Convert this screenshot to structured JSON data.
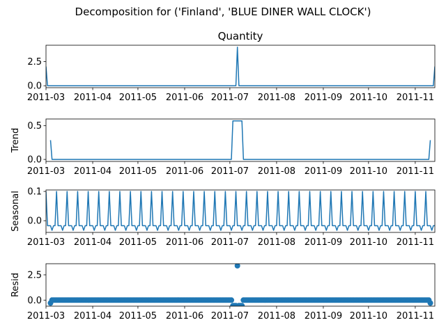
{
  "figure": {
    "suptitle": "Decomposition for ('Finland', 'BLUE DINER WALL CLOCK')"
  },
  "chart_data": [
    {
      "type": "line",
      "panel": "observed",
      "title": "Quantity",
      "ylabel": "",
      "x_range": [
        "2011-03-01",
        "2011-11-14"
      ],
      "ylim": [
        -0.2,
        4.2
      ],
      "yticks": [
        0.0,
        2.5
      ],
      "ytick_labels": [
        "0.0",
        "2.5"
      ],
      "xticks": [
        "2011-03-01",
        "2011-04-01",
        "2011-05-01",
        "2011-06-01",
        "2011-07-01",
        "2011-08-01",
        "2011-09-01",
        "2011-10-01",
        "2011-11-01"
      ],
      "xtick_labels": [
        "2011-03",
        "2011-04",
        "2011-05",
        "2011-06",
        "2011-07",
        "2011-08",
        "2011-09",
        "2011-10",
        "2011-11"
      ],
      "color": "#1f77b4",
      "points": [
        [
          "2011-03-01",
          2.0
        ],
        [
          "2011-03-02",
          0.0
        ],
        [
          "2011-07-05",
          0.0
        ],
        [
          "2011-07-06",
          4.0
        ],
        [
          "2011-07-07",
          0.0
        ],
        [
          "2011-11-13",
          0.0
        ],
        [
          "2011-11-14",
          2.0
        ]
      ]
    },
    {
      "type": "line",
      "panel": "trend",
      "title": "",
      "ylabel": "Trend",
      "x_range": [
        "2011-03-01",
        "2011-11-14"
      ],
      "ylim": [
        -0.03,
        0.6
      ],
      "yticks": [
        0.0,
        0.5
      ],
      "ytick_labels": [
        "0.0",
        "0.5"
      ],
      "xticks": [
        "2011-03-01",
        "2011-04-01",
        "2011-05-01",
        "2011-06-01",
        "2011-07-01",
        "2011-08-01",
        "2011-09-01",
        "2011-10-01",
        "2011-11-01"
      ],
      "xtick_labels": [
        "2011-03",
        "2011-04",
        "2011-05",
        "2011-06",
        "2011-07",
        "2011-08",
        "2011-09",
        "2011-10",
        "2011-11"
      ],
      "color": "#1f77b4",
      "points": [
        [
          "2011-03-04",
          0.286
        ],
        [
          "2011-03-05",
          0.0
        ],
        [
          "2011-07-02",
          0.0
        ],
        [
          "2011-07-03",
          0.571
        ],
        [
          "2011-07-09",
          0.571
        ],
        [
          "2011-07-10",
          0.0
        ],
        [
          "2011-11-10",
          0.0
        ],
        [
          "2011-11-11",
          0.286
        ]
      ]
    },
    {
      "type": "line",
      "panel": "seasonal",
      "title": "",
      "ylabel": "Seasonal",
      "x_range": [
        "2011-03-01",
        "2011-11-14"
      ],
      "ylim": [
        -0.04,
        0.105
      ],
      "yticks": [
        0.0,
        0.1
      ],
      "ytick_labels": [
        "0.0",
        "0.1"
      ],
      "xticks": [
        "2011-03-01",
        "2011-04-01",
        "2011-05-01",
        "2011-06-01",
        "2011-07-01",
        "2011-08-01",
        "2011-09-01",
        "2011-10-01",
        "2011-11-01"
      ],
      "xtick_labels": [
        "2011-03",
        "2011-04",
        "2011-05",
        "2011-06",
        "2011-07",
        "2011-08",
        "2011-09",
        "2011-10",
        "2011-11"
      ],
      "color": "#1f77b4",
      "period_days": 7,
      "weekly_pattern": [
        0.1,
        -0.017,
        -0.017,
        -0.017,
        -0.033,
        -0.017,
        -0.017
      ],
      "pattern_start": "2011-03-01"
    },
    {
      "type": "scatter",
      "panel": "resid",
      "title": "",
      "ylabel": "Resid",
      "x_range": [
        "2011-03-01",
        "2011-11-14"
      ],
      "ylim": [
        -0.6,
        3.6
      ],
      "yticks": [
        0.0,
        2.5
      ],
      "ytick_labels": [
        "0.0",
        "2.5"
      ],
      "xticks": [
        "2011-03-01",
        "2011-04-01",
        "2011-05-01",
        "2011-06-01",
        "2011-07-01",
        "2011-08-01",
        "2011-09-01",
        "2011-10-01",
        "2011-11-01"
      ],
      "xtick_labels": [
        "2011-03",
        "2011-04",
        "2011-05",
        "2011-06",
        "2011-07",
        "2011-08",
        "2011-09",
        "2011-10",
        "2011-11"
      ],
      "color": "#1f77b4",
      "baseline_range": [
        "2011-03-04",
        "2011-11-11"
      ],
      "baseline_value": 0.0,
      "outliers": [
        [
          "2011-03-04",
          -0.29
        ],
        [
          "2011-07-03",
          -0.55
        ],
        [
          "2011-07-04",
          -0.55
        ],
        [
          "2011-07-05",
          -0.55
        ],
        [
          "2011-07-06",
          3.4
        ],
        [
          "2011-07-07",
          -0.55
        ],
        [
          "2011-07-08",
          -0.55
        ],
        [
          "2011-07-09",
          -0.55
        ],
        [
          "2011-11-11",
          -0.29
        ]
      ]
    }
  ]
}
